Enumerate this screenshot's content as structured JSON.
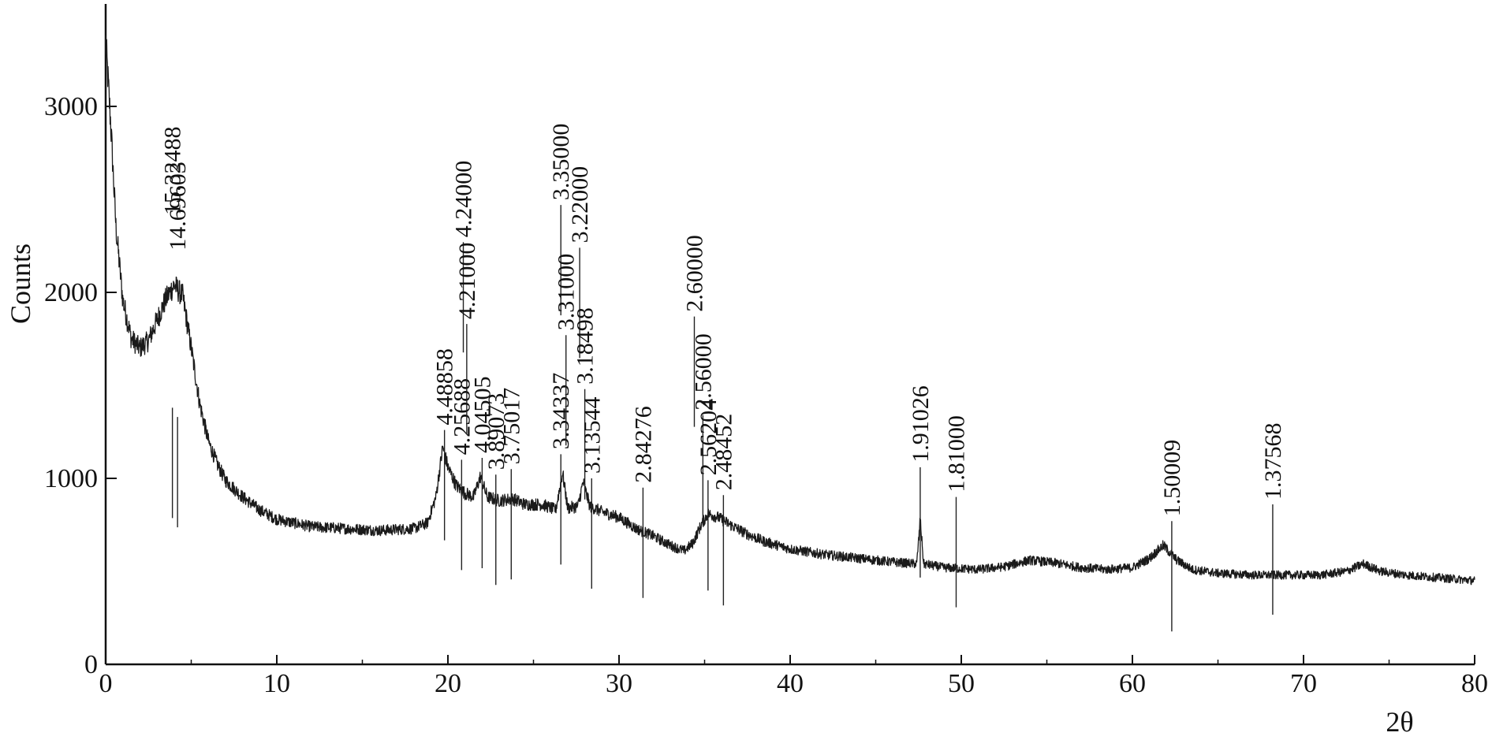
{
  "chart_data": {
    "type": "line",
    "title": "",
    "xlabel": "2θ",
    "ylabel": "Counts",
    "xlim": [
      0,
      80
    ],
    "ylim": [
      0,
      3600
    ],
    "x_ticks": [
      0,
      10,
      20,
      30,
      40,
      50,
      60,
      70,
      80
    ],
    "y_ticks": [
      0,
      1000,
      2000,
      3000
    ],
    "grid": false,
    "legend": "none",
    "series": [
      {
        "points": [
          [
            0.0,
            3350
          ],
          [
            0.3,
            2900
          ],
          [
            0.6,
            2350
          ],
          [
            1.0,
            1960
          ],
          [
            1.5,
            1750
          ],
          [
            2.0,
            1700
          ],
          [
            2.5,
            1740
          ],
          [
            3.0,
            1850
          ],
          [
            3.5,
            1960
          ],
          [
            4.0,
            2040
          ],
          [
            4.5,
            1980
          ],
          [
            5.0,
            1700
          ],
          [
            5.5,
            1400
          ],
          [
            6.0,
            1200
          ],
          [
            6.5,
            1080
          ],
          [
            7.0,
            990
          ],
          [
            8.0,
            900
          ],
          [
            9.0,
            830
          ],
          [
            10.0,
            780
          ],
          [
            11.0,
            760
          ],
          [
            12.0,
            740
          ],
          [
            14.0,
            730
          ],
          [
            16.0,
            720
          ],
          [
            18.0,
            730
          ],
          [
            18.8,
            760
          ],
          [
            19.3,
            900
          ],
          [
            19.7,
            1170
          ],
          [
            20.0,
            1060
          ],
          [
            20.5,
            960
          ],
          [
            21.0,
            920
          ],
          [
            21.5,
            900
          ],
          [
            21.9,
            1010
          ],
          [
            22.3,
            900
          ],
          [
            23.0,
            880
          ],
          [
            23.8,
            890
          ],
          [
            24.5,
            860
          ],
          [
            25.5,
            860
          ],
          [
            26.3,
            830
          ],
          [
            26.7,
            1030
          ],
          [
            27.0,
            840
          ],
          [
            27.6,
            850
          ],
          [
            27.9,
            980
          ],
          [
            28.3,
            850
          ],
          [
            29.0,
            820
          ],
          [
            30.0,
            790
          ],
          [
            31.0,
            730
          ],
          [
            32.0,
            690
          ],
          [
            33.0,
            640
          ],
          [
            33.8,
            610
          ],
          [
            34.3,
            650
          ],
          [
            34.8,
            750
          ],
          [
            35.2,
            810
          ],
          [
            35.8,
            790
          ],
          [
            36.5,
            750
          ],
          [
            37.5,
            700
          ],
          [
            38.5,
            660
          ],
          [
            40.0,
            620
          ],
          [
            42.0,
            590
          ],
          [
            44.0,
            570
          ],
          [
            46.0,
            550
          ],
          [
            47.4,
            540
          ],
          [
            47.6,
            780
          ],
          [
            47.8,
            540
          ],
          [
            49.0,
            520
          ],
          [
            51.0,
            510
          ],
          [
            52.5,
            525
          ],
          [
            54.0,
            560
          ],
          [
            55.5,
            545
          ],
          [
            57.0,
            520
          ],
          [
            58.5,
            510
          ],
          [
            60.0,
            520
          ],
          [
            61.0,
            570
          ],
          [
            61.8,
            640
          ],
          [
            62.6,
            560
          ],
          [
            63.5,
            510
          ],
          [
            65.0,
            490
          ],
          [
            67.0,
            480
          ],
          [
            69.0,
            480
          ],
          [
            71.0,
            480
          ],
          [
            72.5,
            500
          ],
          [
            73.5,
            540
          ],
          [
            74.5,
            500
          ],
          [
            76.0,
            480
          ],
          [
            78.0,
            465
          ],
          [
            80.0,
            450
          ]
        ]
      }
    ],
    "annotations": [
      {
        "text": "15.32488",
        "x": 3.9,
        "top": 1380,
        "label_y": 2390
      },
      {
        "text": "14.69603",
        "x": 4.2,
        "top": 1330,
        "label_y": 2200
      },
      {
        "text": "4.48858",
        "x": 19.8,
        "top": 1260,
        "label_y": 1260
      },
      {
        "text": "4.24000",
        "x": 20.9,
        "top": 2270,
        "label_y": 2270
      },
      {
        "text": "4.25688",
        "x": 20.8,
        "top": 1100,
        "label_y": 1100
      },
      {
        "text": "4.21000",
        "x": 21.1,
        "top": 1830,
        "label_y": 1830
      },
      {
        "text": "4.04505",
        "x": 22.0,
        "top": 1110,
        "label_y": 1110
      },
      {
        "text": "3.89073",
        "x": 22.8,
        "top": 1020,
        "label_y": 1020
      },
      {
        "text": "3.75017",
        "x": 23.7,
        "top": 1050,
        "label_y": 1050
      },
      {
        "text": "3.35000",
        "x": 26.6,
        "top": 2470,
        "label_y": 2470
      },
      {
        "text": "3.34337",
        "x": 26.6,
        "top": 1130,
        "label_y": 1130
      },
      {
        "text": "3.31000",
        "x": 26.9,
        "top": 1770,
        "label_y": 1770
      },
      {
        "text": "3.22000",
        "x": 27.7,
        "top": 2240,
        "label_y": 2240
      },
      {
        "text": "3.18498",
        "x": 28.0,
        "top": 1480,
        "label_y": 1480
      },
      {
        "text": "3.13544",
        "x": 28.4,
        "top": 1000,
        "label_y": 1000
      },
      {
        "text": "2.84276",
        "x": 31.4,
        "top": 950,
        "label_y": 950
      },
      {
        "text": "2.60000",
        "x": 34.4,
        "top": 1870,
        "label_y": 1870
      },
      {
        "text": "2.56000",
        "x": 34.9,
        "top": 1340,
        "label_y": 1340
      },
      {
        "text": "2.56204",
        "x": 35.2,
        "top": 990,
        "label_y": 990
      },
      {
        "text": "2.48452",
        "x": 36.1,
        "top": 910,
        "label_y": 910
      },
      {
        "text": "1.91026",
        "x": 47.6,
        "top": 1060,
        "label_y": 1060
      },
      {
        "text": "1.81000",
        "x": 49.7,
        "top": 900,
        "label_y": 900
      },
      {
        "text": "1.50009",
        "x": 62.3,
        "top": 770,
        "label_y": 770
      },
      {
        "text": "1.37568",
        "x": 68.2,
        "top": 860,
        "label_y": 860
      }
    ]
  }
}
